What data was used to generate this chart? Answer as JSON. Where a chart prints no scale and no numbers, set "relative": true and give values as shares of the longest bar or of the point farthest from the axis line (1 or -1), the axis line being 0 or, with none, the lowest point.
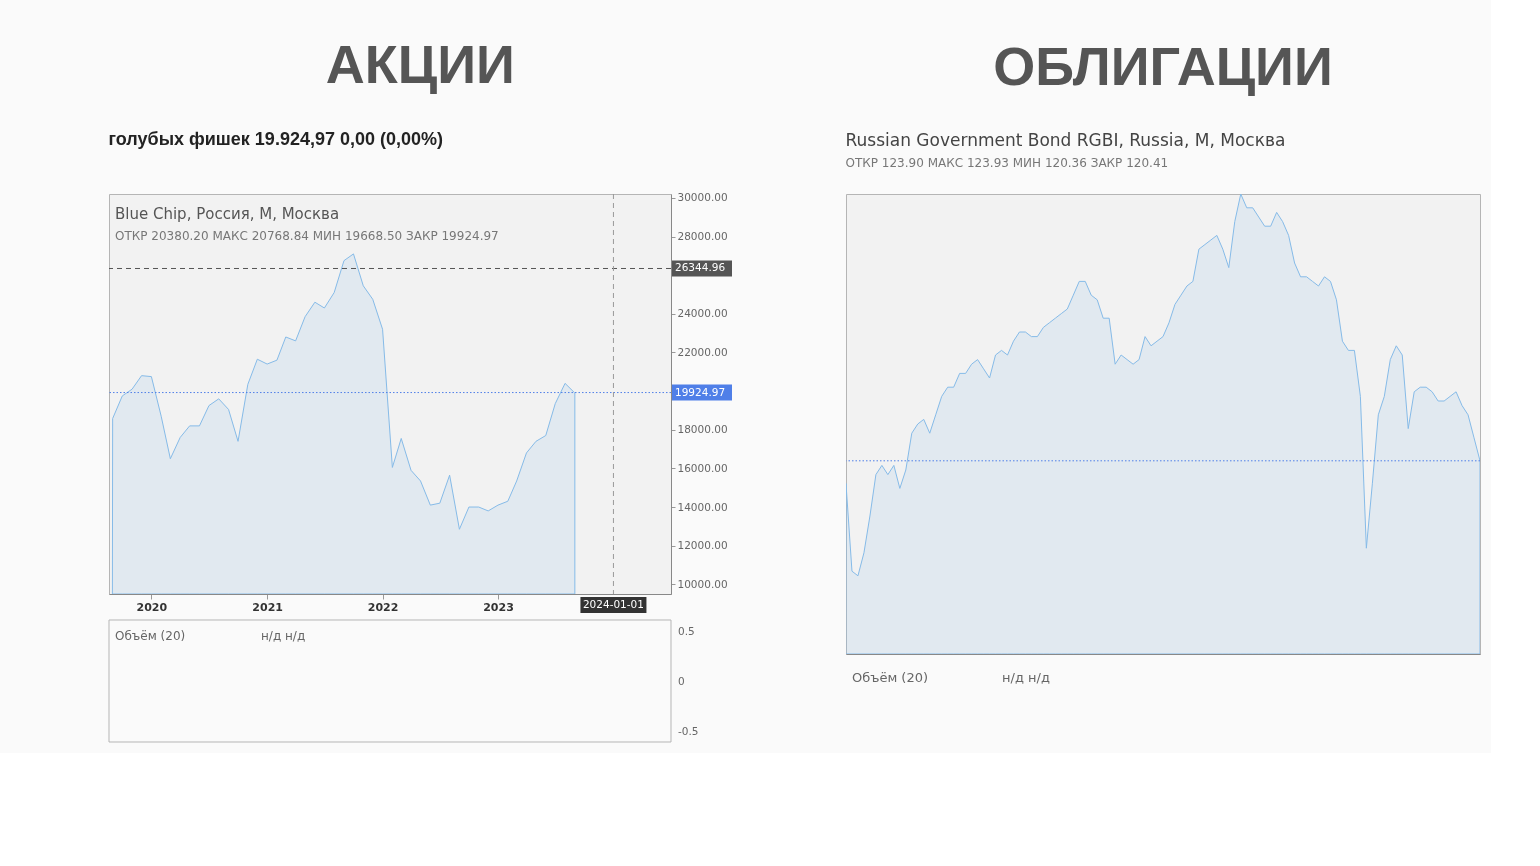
{
  "chart_data": [
    {
      "type": "area",
      "title": "АКЦИИ",
      "subtitle": "голубых фишек 19.924,97 0,00 (0,00%)",
      "annotations": [
        "Blue Chip, Россия, М, Москва",
        "ОТКР 20380.20 МАКС 20768.84 МИН 19668.50 ЗАКР 19924.97",
        "Объём (20)",
        "н/д н/д",
        "0.5",
        "0",
        "-0.5"
      ],
      "x": [
        "2019-09",
        "2019-10",
        "2019-11",
        "2019-12",
        "2020-01",
        "2020-02",
        "2020-03",
        "2020-04",
        "2020-05",
        "2020-06",
        "2020-07",
        "2020-08",
        "2020-09",
        "2020-10",
        "2020-11",
        "2020-12",
        "2021-01",
        "2021-02",
        "2021-03",
        "2021-04",
        "2021-05",
        "2021-06",
        "2021-07",
        "2021-08",
        "2021-09",
        "2021-10",
        "2021-11",
        "2021-12",
        "2022-01",
        "2022-02",
        "2022-03",
        "2022-04",
        "2022-05",
        "2022-06",
        "2022-07",
        "2022-08",
        "2022-09",
        "2022-10",
        "2022-11",
        "2022-12",
        "2023-01",
        "2023-02",
        "2023-03",
        "2023-04",
        "2023-05",
        "2023-06",
        "2023-07",
        "2023-08",
        "2023-09"
      ],
      "values": [
        18600,
        19750,
        20100,
        20800,
        20750,
        18700,
        16500,
        17600,
        18200,
        18200,
        19250,
        19600,
        19050,
        17400,
        20350,
        21650,
        21400,
        21600,
        22800,
        22600,
        23850,
        24600,
        24300,
        25100,
        26750,
        27100,
        25450,
        24750,
        23200,
        16050,
        17550,
        15900,
        15350,
        14100,
        14200,
        15650,
        12850,
        14000,
        14000,
        13800,
        14100,
        14300,
        15350,
        16800,
        17400,
        17700,
        19350,
        20400,
        19900
      ],
      "color": "#86bbe8",
      "xlim": [
        "2019-08-20",
        "2024-07-01"
      ],
      "xticks": [
        "2020",
        "2021",
        "2022",
        "2023"
      ],
      "ylim": [
        9500,
        30200
      ],
      "yticks": [
        {
          "value": 10000,
          "label": "10000.00"
        },
        {
          "value": 12000,
          "label": "12000.00"
        },
        {
          "value": 14000,
          "label": "14000.00"
        },
        {
          "value": 16000,
          "label": "16000.00"
        },
        {
          "value": 18000,
          "label": "18000.00"
        },
        {
          "value": 22000,
          "label": "22000.00"
        },
        {
          "value": 24000,
          "label": "24000.00"
        },
        {
          "value": 28000,
          "label": "28000.00"
        },
        {
          "value": 30000,
          "label": "30000.00"
        }
      ],
      "ref_lines": [
        {
          "axis": "y",
          "value": 26344.96,
          "label": "26344.96",
          "color": "#555555",
          "line_style": "dashed"
        },
        {
          "axis": "y",
          "value": 19924.97,
          "label": "19924.97",
          "color": "#4f7fe8",
          "line_style": "dotted"
        },
        {
          "axis": "x",
          "value": "2024-01-01",
          "label": "2024-01-01",
          "color": "#999999",
          "line_style": "dashed"
        }
      ]
    },
    {
      "type": "area",
      "title": "ОБЛИГАЦИИ",
      "subtitle": "Russian Government Bond RGBI, Russia, М, Москва",
      "annotations": [
        "ОТКР 123.90 МАКС 123.93 МИН 120.36 ЗАКР 120.41",
        "Объём (20)",
        "н/д н/д"
      ],
      "relative": true,
      "categories": [
        null,
        null,
        null,
        null,
        null,
        null,
        null,
        null,
        null,
        null,
        null,
        null,
        null,
        null,
        null,
        null,
        null,
        null,
        null,
        null,
        null,
        null,
        null,
        null,
        null,
        null,
        null,
        null,
        null,
        null,
        null,
        null,
        null,
        null,
        null,
        null,
        null,
        null,
        null,
        null,
        null,
        null,
        null,
        null,
        null,
        null,
        null,
        null,
        null,
        null,
        null,
        null,
        null,
        null,
        null,
        null,
        null,
        null,
        null,
        null,
        null,
        null,
        null,
        null,
        null,
        null,
        null,
        null,
        null,
        null,
        null,
        null,
        null,
        null,
        null,
        null,
        null,
        null,
        null,
        null,
        null,
        null,
        null,
        null,
        null,
        null,
        null,
        null,
        null,
        null,
        null,
        null,
        null,
        null,
        null,
        null,
        null,
        null,
        null,
        null,
        null,
        null,
        null,
        null,
        null,
        null,
        null
      ],
      "values": [
        0.37,
        0.18,
        0.17,
        0.22,
        0.3,
        0.39,
        0.41,
        0.39,
        0.41,
        0.36,
        0.4,
        0.48,
        0.5,
        0.51,
        0.48,
        0.52,
        0.56,
        0.58,
        0.58,
        0.61,
        0.61,
        0.63,
        0.64,
        0.62,
        0.6,
        0.65,
        0.66,
        0.65,
        0.68,
        0.7,
        0.7,
        0.69,
        0.69,
        0.71,
        0.72,
        0.73,
        0.74,
        0.75,
        0.78,
        0.81,
        0.81,
        0.78,
        0.77,
        0.73,
        0.73,
        0.63,
        0.65,
        0.64,
        0.63,
        0.64,
        0.69,
        0.67,
        0.68,
        0.69,
        0.72,
        0.76,
        0.78,
        0.8,
        0.81,
        0.88,
        0.89,
        0.9,
        0.91,
        0.88,
        0.84,
        0.94,
        1,
        0.97,
        0.97,
        0.95,
        0.93,
        0.93,
        0.96,
        0.94,
        0.91,
        0.85,
        0.82,
        0.82,
        0.81,
        0.8,
        0.82,
        0.81,
        0.77,
        0.68,
        0.66,
        0.66,
        0.56,
        0.23,
        0.37,
        0.52,
        0.56,
        0.64,
        0.67,
        0.65,
        0.49,
        0.57,
        0.58,
        0.58,
        0.57,
        0.55,
        0.55,
        0.56,
        0.57,
        0.54,
        0.52,
        0.47,
        0.42
      ],
      "color": "#86bbe8",
      "ref_lines": [
        {
          "axis": "y",
          "value": 0.42,
          "color": "#4f7fe8",
          "line_style": "dotted"
        }
      ]
    }
  ]
}
